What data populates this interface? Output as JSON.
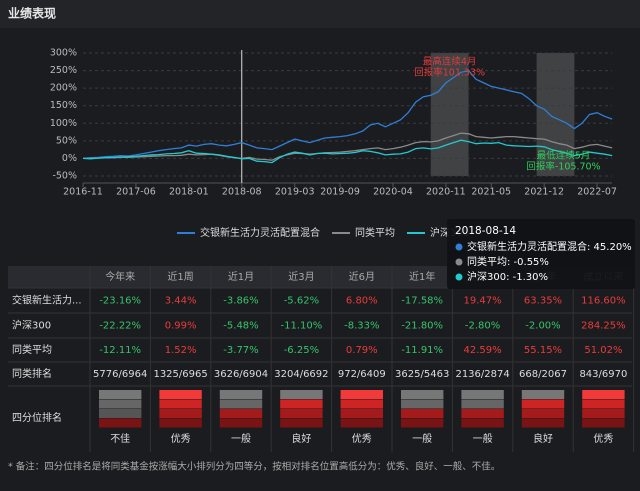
{
  "page_title": "业绩表现",
  "chart_data": {
    "type": "line",
    "x": [
      "2016-11",
      "2016-12",
      "2017-01",
      "2017-02",
      "2017-03",
      "2017-04",
      "2017-05",
      "2017-06",
      "2017-07",
      "2017-08",
      "2017-09",
      "2017-10",
      "2017-11",
      "2017-12",
      "2018-01",
      "2018-02",
      "2018-03",
      "2018-04",
      "2018-05",
      "2018-06",
      "2018-07",
      "2018-08",
      "2018-09",
      "2018-10",
      "2018-11",
      "2018-12",
      "2019-01",
      "2019-02",
      "2019-03",
      "2019-04",
      "2019-05",
      "2019-06",
      "2019-07",
      "2019-08",
      "2019-09",
      "2019-10",
      "2019-11",
      "2019-12",
      "2020-01",
      "2020-02",
      "2020-03",
      "2020-04",
      "2020-05",
      "2020-06",
      "2020-07",
      "2020-08",
      "2020-09",
      "2020-10",
      "2020-11",
      "2020-12",
      "2021-01",
      "2021-02",
      "2021-03",
      "2021-04",
      "2021-05",
      "2021-06",
      "2021-07",
      "2021-08",
      "2021-09",
      "2021-10",
      "2021-11",
      "2021-12",
      "2022-01",
      "2022-02",
      "2022-03",
      "2022-04",
      "2022-05",
      "2022-06",
      "2022-07",
      "2022-08",
      "2022-09"
    ],
    "series": [
      {
        "name": "交银新生活力灵活配置混合",
        "color": "#2f7fd8",
        "values": [
          0,
          2,
          3,
          5,
          6,
          8,
          7,
          10,
          14,
          18,
          22,
          25,
          28,
          30,
          38,
          35,
          40,
          42,
          38,
          36,
          40,
          45,
          38,
          30,
          28,
          25,
          35,
          45,
          55,
          50,
          45,
          52,
          58,
          60,
          62,
          65,
          70,
          78,
          95,
          100,
          90,
          100,
          110,
          130,
          160,
          175,
          180,
          190,
          215,
          230,
          245,
          250,
          225,
          215,
          205,
          200,
          195,
          190,
          185,
          170,
          150,
          140,
          120,
          110,
          100,
          85,
          100,
          125,
          130,
          120,
          112
        ]
      },
      {
        "name": "同类平均",
        "color": "#8a8a8a",
        "values": [
          0,
          0,
          1,
          2,
          2,
          3,
          3,
          4,
          5,
          6,
          7,
          8,
          8,
          9,
          12,
          10,
          11,
          12,
          9,
          5,
          2,
          0,
          3,
          -2,
          -3,
          -5,
          5,
          10,
          15,
          14,
          12,
          14,
          16,
          17,
          18,
          20,
          22,
          25,
          28,
          30,
          25,
          28,
          32,
          38,
          45,
          48,
          47,
          50,
          58,
          65,
          72,
          70,
          62,
          60,
          58,
          60,
          62,
          62,
          60,
          58,
          56,
          55,
          48,
          42,
          38,
          28,
          32,
          38,
          40,
          35,
          30
        ]
      },
      {
        "name": "沪深300",
        "color": "#22c9cf",
        "values": [
          0,
          -1,
          1,
          2,
          3,
          4,
          5,
          6,
          8,
          10,
          11,
          13,
          14,
          16,
          22,
          15,
          14,
          12,
          10,
          6,
          3,
          -1,
          0,
          -8,
          -9,
          -12,
          2,
          12,
          18,
          15,
          10,
          14,
          15,
          13,
          14,
          15,
          17,
          22,
          20,
          16,
          10,
          12,
          13,
          18,
          28,
          30,
          27,
          30,
          38,
          45,
          52,
          48,
          42,
          44,
          43,
          45,
          38,
          36,
          35,
          34,
          35,
          33,
          25,
          20,
          15,
          8,
          12,
          18,
          15,
          12,
          8
        ]
      }
    ],
    "ylim": [
      -50,
      300
    ],
    "yticks": [
      {
        "value": -50,
        "label": "-50%"
      },
      {
        "value": 0,
        "label": "0%"
      },
      {
        "value": 50,
        "label": "50%"
      },
      {
        "value": 100,
        "label": "100%"
      },
      {
        "value": 150,
        "label": "150%"
      },
      {
        "value": 200,
        "label": "200%"
      },
      {
        "value": 250,
        "label": "250%"
      },
      {
        "value": 300,
        "label": "300%"
      }
    ],
    "xticks": [
      "2016-11",
      "2017-06",
      "2018-01",
      "2018-08",
      "2019-03",
      "2019-09",
      "2020-04",
      "2020-11",
      "2021-05",
      "2021-12",
      "2022-07"
    ],
    "grid": true,
    "highlights": [
      {
        "start": "2020-09",
        "end": "2021-02",
        "color": "#e23b3b",
        "lines": [
          "最高连续4月",
          "回报率101.33%"
        ]
      },
      {
        "start": "2021-11",
        "end": "2022-04",
        "color": "#2bd15a",
        "lines": [
          "最低连续5月",
          "回报率-105.70%"
        ]
      }
    ],
    "cursor": "2018-08",
    "tooltip": {
      "title": "2018-08-14",
      "items": [
        "交银新生活力灵活配置混合: 45.20%",
        "同类平均: -0.55%",
        "沪深300: -1.30%"
      ]
    }
  },
  "table": {
    "header": [
      "今年来",
      "近1周",
      "近1月",
      "近3月",
      "近6月",
      "近1年",
      "近2年",
      "近3年",
      "成立以来"
    ],
    "rows": [
      [
        "交银新生活力...",
        "-23.16%",
        "3.44%",
        "-3.86%",
        "-5.62%",
        "6.80%",
        "-17.58%",
        "19.47%",
        "63.35%",
        "116.60%"
      ],
      [
        "沪深300",
        "-22.22%",
        "0.99%",
        "-5.48%",
        "-11.10%",
        "-8.33%",
        "-21.80%",
        "-2.80%",
        "-2.00%",
        "284.25%"
      ],
      [
        "同类平均",
        "-12.11%",
        "1.52%",
        "-3.77%",
        "-6.25%",
        "0.79%",
        "-11.91%",
        "42.59%",
        "55.15%",
        "51.02%"
      ],
      [
        "同类排名",
        "5776/6964",
        "1325/6965",
        "3626/6904",
        "3204/6692",
        "972/6409",
        "3625/5463",
        "2136/2874",
        "668/2067",
        "843/6970"
      ]
    ],
    "quartile": {
      "label": "四分位排名",
      "levels": [
        1,
        4,
        2,
        3,
        4,
        2,
        2,
        3,
        4
      ],
      "ratings": [
        "不佳",
        "优秀",
        "一般",
        "良好",
        "优秀",
        "一般",
        "一般",
        "良好",
        "优秀"
      ]
    }
  },
  "footnote": "* 备注：四分位排名是将同类基金按涨幅大小排列分为四等分，按相对排名位置高低分为：优秀、良好、一般、不佳。"
}
